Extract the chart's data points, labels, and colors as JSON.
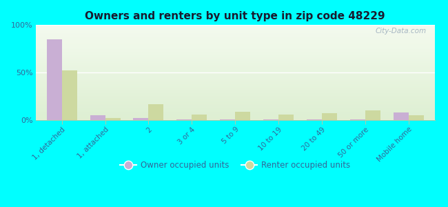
{
  "title": "Owners and renters by unit type in zip code 48229",
  "categories": [
    "1, detached",
    "1, attached",
    "2",
    "3 or 4",
    "5 to 9",
    "10 to 19",
    "20 to 49",
    "50 or more",
    "Mobile home"
  ],
  "owner_values": [
    85,
    5,
    2,
    0.5,
    1,
    0.5,
    0.5,
    0.5,
    8
  ],
  "renter_values": [
    52,
    2,
    17,
    6,
    9,
    6,
    7,
    10,
    5
  ],
  "owner_color": "#c9afd4",
  "renter_color": "#cdd9a0",
  "background_color": "#00ffff",
  "plot_bg_top": "#f0f8e8",
  "plot_bg_bottom": "#e0f0d0",
  "ylim": [
    0,
    100
  ],
  "yticks": [
    0,
    50,
    100
  ],
  "ytick_labels": [
    "0%",
    "50%",
    "100%"
  ],
  "watermark": "City-Data.com",
  "legend_labels": [
    "Owner occupied units",
    "Renter occupied units"
  ],
  "bar_width": 0.35,
  "title_color": "#1a1a2e",
  "tick_color": "#336699"
}
